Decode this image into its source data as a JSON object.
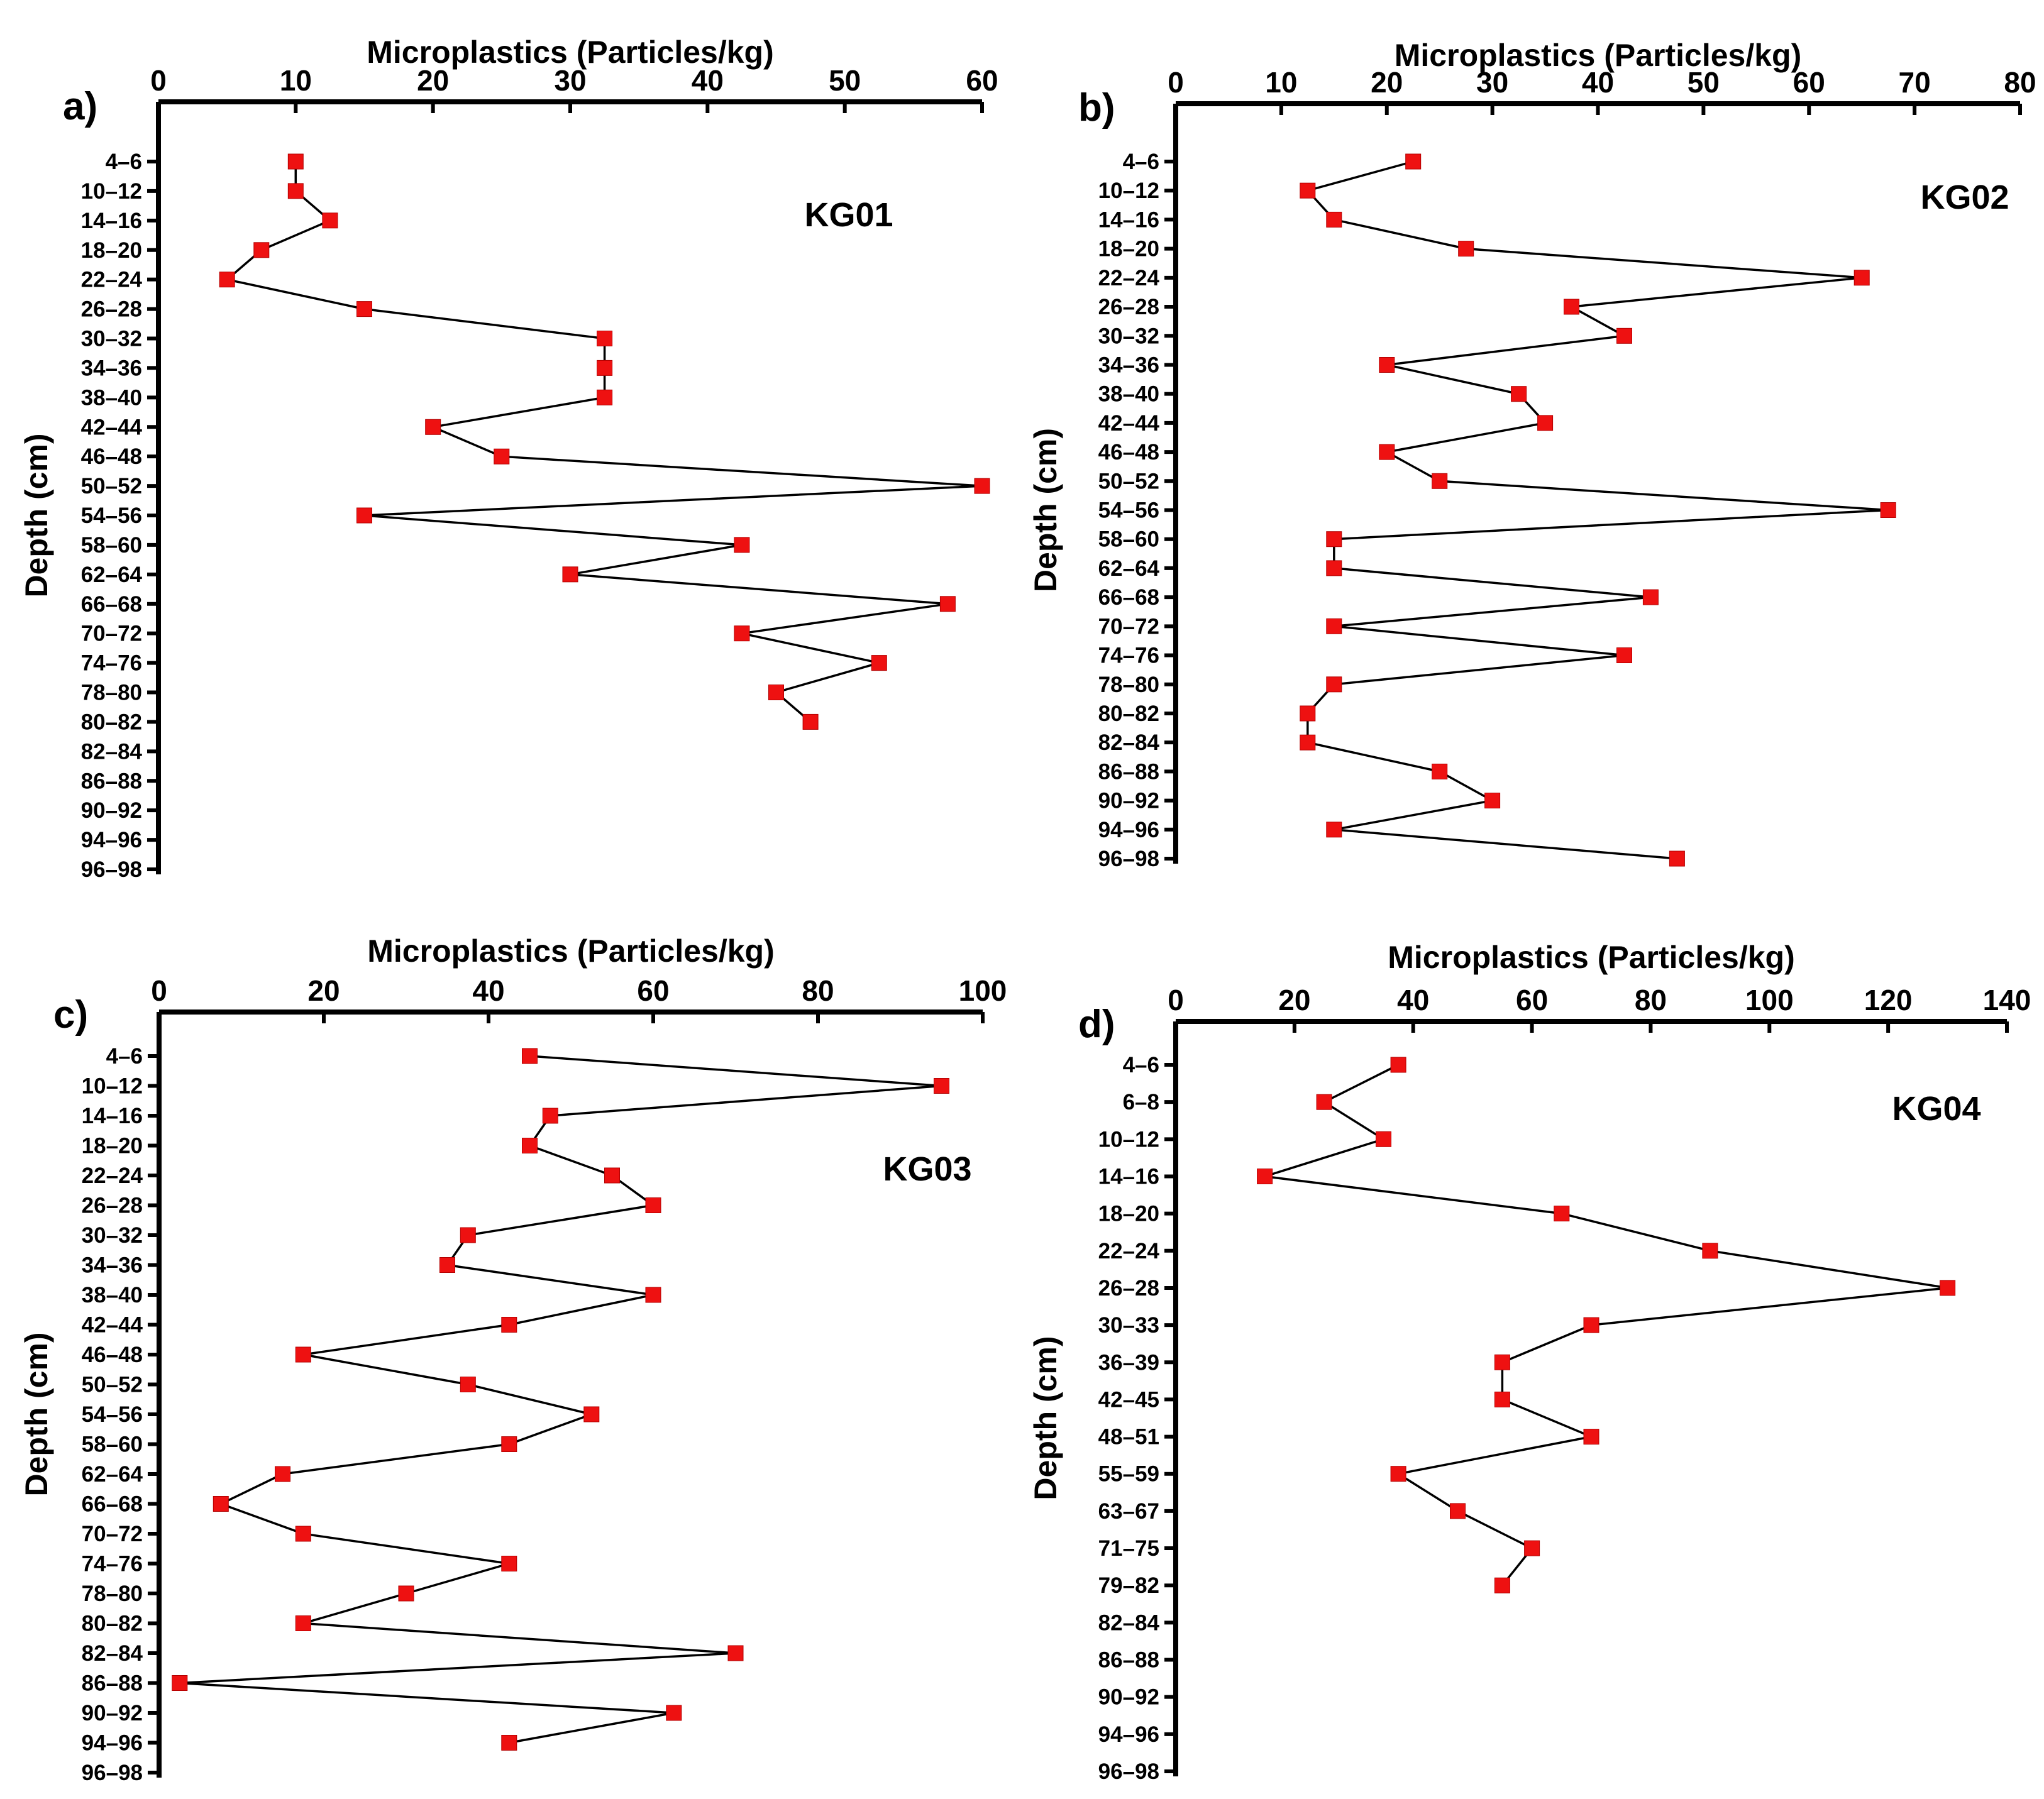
{
  "chart_data": [
    {
      "type": "line",
      "panel_label": "a)",
      "site_label": "KG01",
      "xlabel": "Microplastics (Particles/kg)",
      "ylabel": "Depth (cm)",
      "xlim": [
        0,
        60
      ],
      "x_ticks": [
        0,
        10,
        20,
        30,
        40,
        50,
        60
      ],
      "depth_labels": [
        "4–6",
        "10–12",
        "14–16",
        "18–20",
        "22–24",
        "26–28",
        "30–32",
        "34–36",
        "38–40",
        "42–44",
        "46–48",
        "50–52",
        "54–56",
        "58–60",
        "62–64",
        "66–68",
        "70–72",
        "74–76",
        "78–80",
        "80–82",
        "82–84",
        "86–88",
        "90–92",
        "94–96",
        "96–98"
      ],
      "series": [
        {
          "values": [
            10,
            10,
            12.5,
            7.5,
            5,
            15,
            32.5,
            32.5,
            32.5,
            20,
            25,
            60,
            15,
            42.5,
            30,
            57.5,
            42.5,
            52.5,
            45,
            47.5,
            null,
            null,
            null,
            null,
            null
          ]
        }
      ],
      "grid": false
    },
    {
      "type": "line",
      "panel_label": "b)",
      "site_label": "KG02",
      "xlabel": "Microplastics (Particles/kg)",
      "ylabel": "Depth (cm)",
      "xlim": [
        0,
        80
      ],
      "x_ticks": [
        0,
        10,
        20,
        30,
        40,
        50,
        60,
        70,
        80
      ],
      "depth_labels": [
        "4–6",
        "10–12",
        "14–16",
        "18–20",
        "22–24",
        "26–28",
        "30–32",
        "34–36",
        "38–40",
        "42–44",
        "46–48",
        "50–52",
        "54–56",
        "58–60",
        "62–64",
        "66–68",
        "70–72",
        "74–76",
        "78–80",
        "80–82",
        "82–84",
        "86–88",
        "90–92",
        "94–96",
        "96–98"
      ],
      "series": [
        {
          "values": [
            22.5,
            12.5,
            15,
            27.5,
            65,
            37.5,
            42.5,
            20,
            32.5,
            35,
            20,
            25,
            67.5,
            15,
            15,
            45,
            15,
            42.5,
            15,
            12.5,
            12.5,
            25,
            30,
            15,
            47.5
          ]
        }
      ],
      "grid": false
    },
    {
      "type": "line",
      "panel_label": "c)",
      "site_label": "KG03",
      "xlabel": "Microplastics (Particles/kg)",
      "ylabel": "Depth (cm)",
      "xlim": [
        0,
        100
      ],
      "x_ticks": [
        0,
        20,
        40,
        60,
        80,
        100
      ],
      "depth_labels": [
        "4–6",
        "10–12",
        "14–16",
        "18–20",
        "22–24",
        "26–28",
        "30–32",
        "34–36",
        "38–40",
        "42–44",
        "46–48",
        "50–52",
        "54–56",
        "58–60",
        "62–64",
        "66–68",
        "70–72",
        "74–76",
        "78–80",
        "80–82",
        "82–84",
        "86–88",
        "90–92",
        "94–96",
        "96–98"
      ],
      "series": [
        {
          "values": [
            45,
            95,
            47.5,
            45,
            55,
            60,
            37.5,
            35,
            60,
            42.5,
            17.5,
            37.5,
            52.5,
            42.5,
            15,
            7.5,
            17.5,
            42.5,
            30,
            17.5,
            70,
            2.5,
            62.5,
            42.5,
            null
          ]
        }
      ],
      "grid": false
    },
    {
      "type": "line",
      "panel_label": "d)",
      "site_label": "KG04",
      "xlabel": "Microplastics (Particles/kg)",
      "ylabel": "Depth (cm)",
      "xlim": [
        0,
        140
      ],
      "x_ticks": [
        0,
        20,
        40,
        60,
        80,
        100,
        120,
        140
      ],
      "depth_labels": [
        "4–6",
        "6–8",
        "10–12",
        "14–16",
        "18–20",
        "22–24",
        "26–28",
        "30–33",
        "36–39",
        "42–45",
        "48–51",
        "55–59",
        "63–67",
        "71–75",
        "79–82",
        "82–84",
        "86–88",
        "90–92",
        "94–96",
        "96–98"
      ],
      "series": [
        {
          "values": [
            37.5,
            25,
            35,
            15,
            65,
            90,
            130,
            70,
            55,
            55,
            70,
            37.5,
            47.5,
            60,
            55,
            null,
            null,
            null,
            null,
            null
          ]
        }
      ],
      "grid": false
    }
  ]
}
